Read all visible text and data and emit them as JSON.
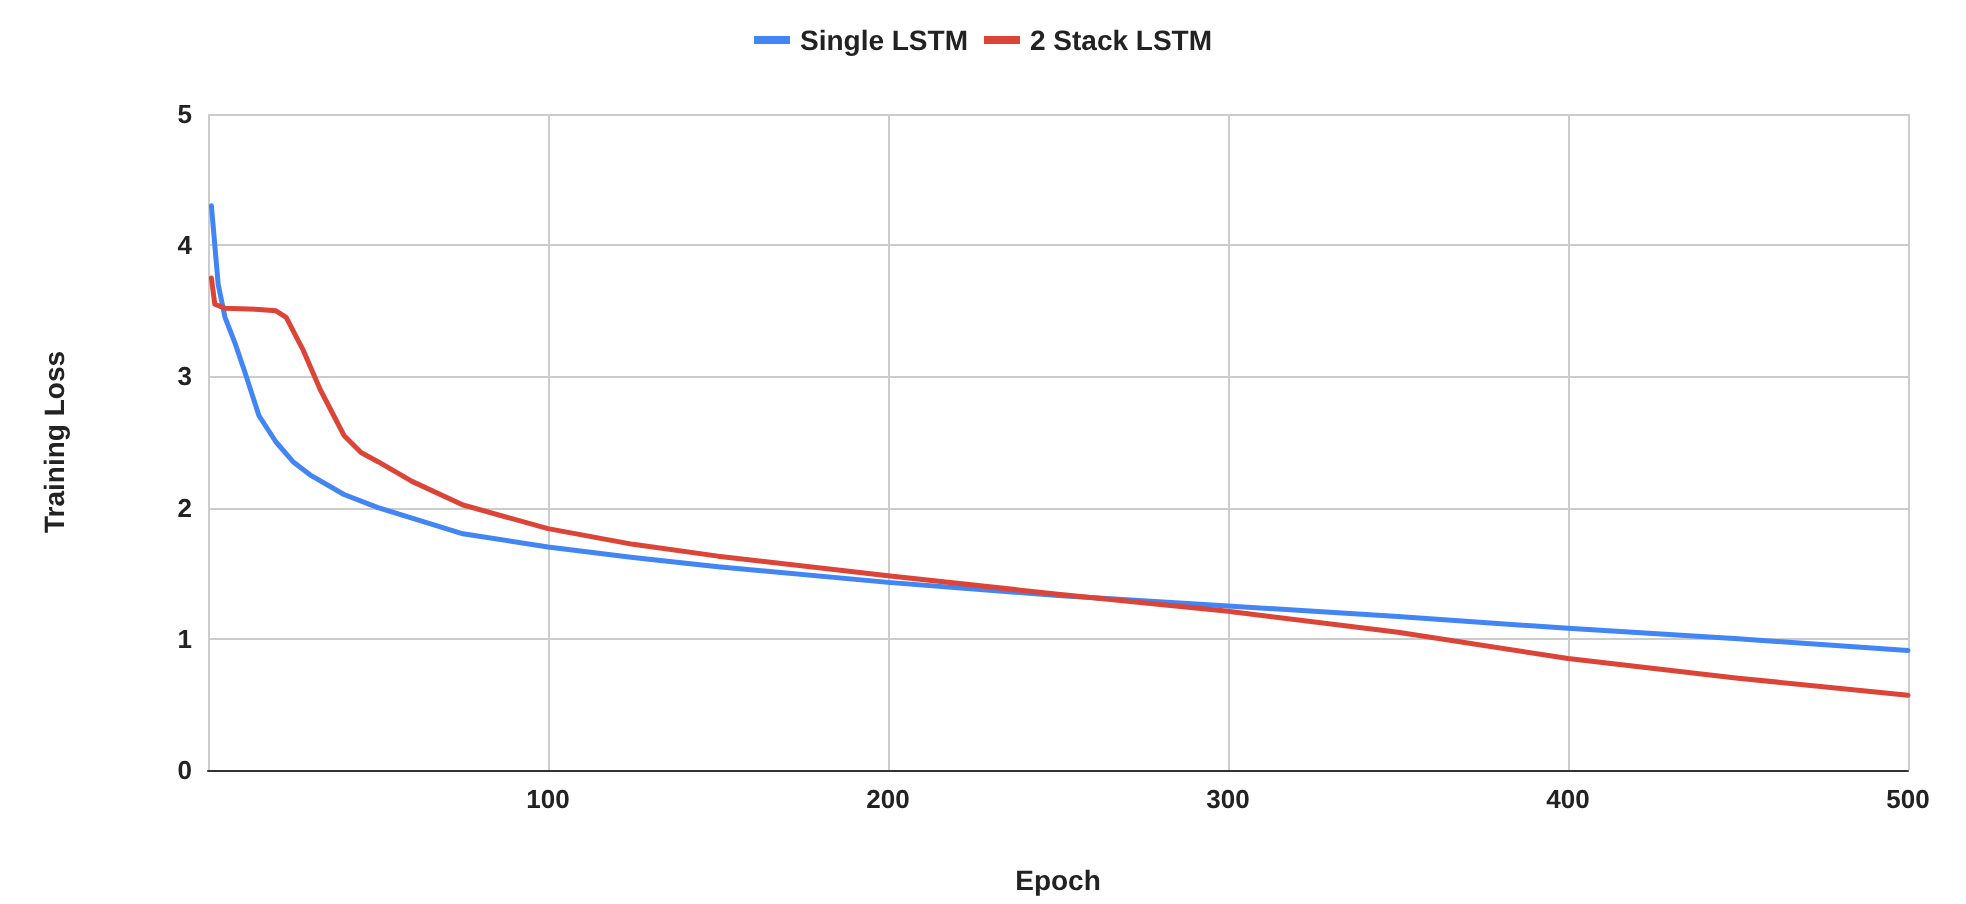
{
  "chart_data": {
    "type": "line",
    "xlabel": "Epoch",
    "ylabel": "Training Loss",
    "xlim": [
      0,
      500
    ],
    "xticks": [
      {
        "value": 0,
        "label": null
      },
      100,
      200,
      300,
      400,
      500
    ],
    "ylim": [
      0,
      5
    ],
    "yticks": [
      0,
      1,
      2,
      3,
      4,
      5
    ],
    "grid": true,
    "legend": "top",
    "marker": "none",
    "line_style": "solid",
    "series": [
      {
        "name": "Single LSTM",
        "color": "#4285f4",
        "x": [
          1,
          3,
          5,
          8,
          11,
          15,
          20,
          25,
          30,
          40,
          50,
          60,
          75,
          100,
          125,
          150,
          200,
          250,
          300,
          350,
          400,
          450,
          500
        ],
        "values": [
          4.3,
          3.7,
          3.45,
          3.25,
          3.02,
          2.7,
          2.5,
          2.35,
          2.25,
          2.1,
          2.0,
          1.92,
          1.8,
          1.7,
          1.62,
          1.55,
          1.43,
          1.33,
          1.25,
          1.17,
          1.08,
          1.0,
          0.91
        ]
      },
      {
        "name": "2 Stack LSTM",
        "color": "#db4437",
        "x": [
          1,
          2,
          5,
          15,
          20,
          23,
          26,
          28,
          33,
          37,
          40,
          45,
          50,
          60,
          75,
          100,
          125,
          150,
          200,
          250,
          300,
          350,
          400,
          450,
          500
        ],
        "values": [
          3.75,
          3.55,
          3.52,
          3.51,
          3.5,
          3.45,
          3.3,
          3.2,
          2.9,
          2.7,
          2.55,
          2.42,
          2.35,
          2.2,
          2.02,
          1.84,
          1.72,
          1.63,
          1.48,
          1.34,
          1.21,
          1.05,
          0.85,
          0.7,
          0.57
        ]
      }
    ]
  }
}
